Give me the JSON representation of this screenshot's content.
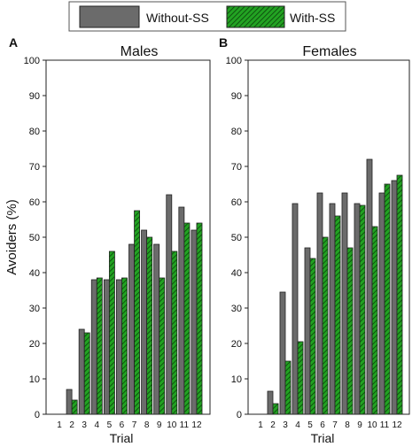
{
  "legend": {
    "items": [
      {
        "label": "Without-SS",
        "color": "#6b6b6b",
        "pattern": "solid"
      },
      {
        "label": "With-SS",
        "color": "#1c9e1c",
        "pattern": "hatched"
      }
    ]
  },
  "shared": {
    "ylabel": "Avoiders (%)",
    "xlabel": "Trial"
  },
  "chart_data": [
    {
      "type": "bar",
      "panel_letter": "A",
      "title": "Males",
      "xlabel": "Trial",
      "ylabel": "Avoiders (%)",
      "ylim": [
        0,
        100
      ],
      "yticks": [
        0,
        10,
        20,
        30,
        40,
        50,
        60,
        70,
        80,
        90,
        100
      ],
      "grid": false,
      "legend_position": "top",
      "categories": [
        "1",
        "2",
        "3",
        "4",
        "5",
        "6",
        "7",
        "8",
        "9",
        "10",
        "11",
        "12"
      ],
      "series": [
        {
          "name": "Without-SS",
          "values": [
            0,
            7,
            24,
            38,
            38,
            38,
            48,
            52,
            48,
            62,
            58.5,
            52
          ]
        },
        {
          "name": "With-SS",
          "values": [
            0,
            4,
            23,
            38.5,
            46,
            38.5,
            57.5,
            50,
            38.5,
            46,
            54,
            54
          ]
        }
      ]
    },
    {
      "type": "bar",
      "panel_letter": "B",
      "title": "Females",
      "xlabel": "Trial",
      "ylabel": "",
      "ylim": [
        0,
        100
      ],
      "yticks": [
        0,
        10,
        20,
        30,
        40,
        50,
        60,
        70,
        80,
        90,
        100
      ],
      "grid": false,
      "legend_position": "top",
      "categories": [
        "1",
        "2",
        "3",
        "4",
        "5",
        "6",
        "7",
        "8",
        "9",
        "10",
        "11",
        "12"
      ],
      "series": [
        {
          "name": "Without-SS",
          "values": [
            0,
            6.5,
            34.5,
            59.5,
            47,
            62.5,
            59.5,
            62.5,
            59.5,
            72,
            62.5,
            66
          ]
        },
        {
          "name": "With-SS",
          "values": [
            0,
            3,
            15,
            20.5,
            44,
            50,
            56,
            47,
            59,
            53,
            65,
            67.5
          ]
        }
      ]
    }
  ]
}
